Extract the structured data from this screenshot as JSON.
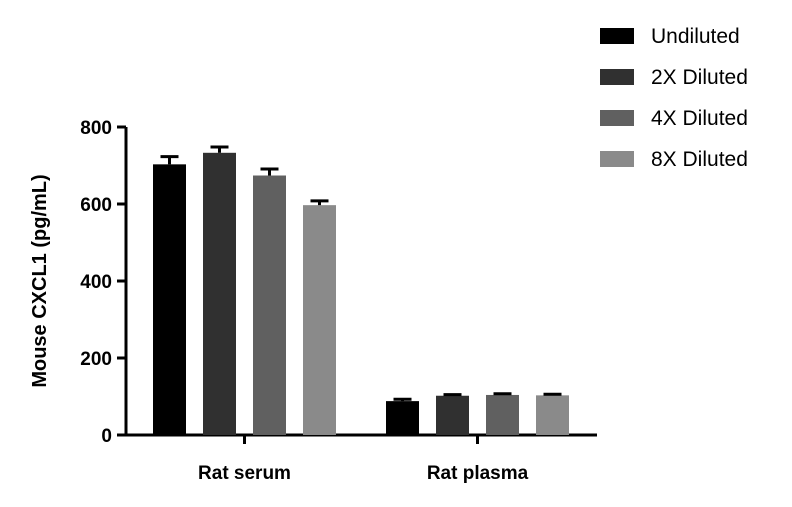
{
  "chart_data": {
    "type": "bar",
    "title": "",
    "xlabel": "",
    "ylabel": "Mouse CXCL1 (pg/mL)",
    "ylim": [
      0,
      800
    ],
    "yticks": [
      0,
      200,
      400,
      600,
      800
    ],
    "categories": [
      "Rat serum",
      "Rat plasma"
    ],
    "series": [
      {
        "name": "Undiluted",
        "color": "#000000",
        "values": [
          703,
          88
        ],
        "errors": [
          20,
          5
        ]
      },
      {
        "name": "2X Diluted",
        "color": "#303030",
        "values": [
          733,
          102
        ],
        "errors": [
          15,
          3
        ]
      },
      {
        "name": "4X Diluted",
        "color": "#606060",
        "values": [
          674,
          104
        ],
        "errors": [
          17,
          3
        ]
      },
      {
        "name": "8X Diluted",
        "color": "#8a8a8a",
        "values": [
          597,
          103
        ],
        "errors": [
          11,
          3
        ]
      }
    ],
    "legend_position": "top-right",
    "grid": false
  }
}
